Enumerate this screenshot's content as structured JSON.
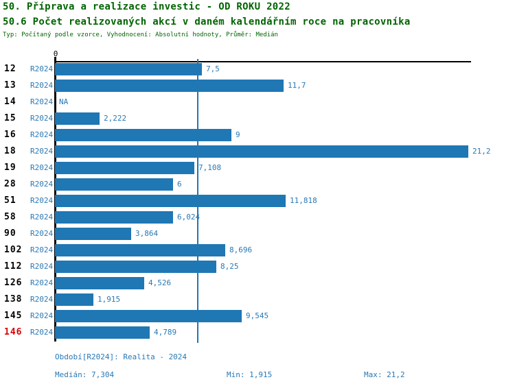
{
  "header": {
    "title_line1": "50. Příprava a realizace investic - OD ROKU 2022",
    "title_line2": "50.6 Počet realizovaných akcí v daném kalendářním roce na pracovníka",
    "subtitle": "Typ: Počítaný podle vzorce, Vyhodnocení: Absolutní hodnoty, Průměr: Medián"
  },
  "colors": {
    "title_green": "#006400",
    "bar_blue": "#1f77b4",
    "text_blue": "#2878b5",
    "highlight_red": "#d90000",
    "axis_black": "#000000"
  },
  "chart_data": {
    "type": "bar",
    "orientation": "horizontal",
    "axis_zero_label": "0",
    "series_label": "R2024",
    "categories": [
      "12",
      "13",
      "14",
      "15",
      "16",
      "18",
      "19",
      "28",
      "51",
      "58",
      "90",
      "102",
      "112",
      "126",
      "138",
      "145",
      "146"
    ],
    "values": [
      7.5,
      11.7,
      null,
      2.222,
      9,
      21.2,
      7.108,
      6,
      11.818,
      6.024,
      3.864,
      8.696,
      8.25,
      4.526,
      1.915,
      9.545,
      4.789
    ],
    "value_labels": [
      "7,5",
      "11,7",
      "NA",
      "2,222",
      "9",
      "21,2",
      "7,108",
      "6",
      "11,818",
      "6,024",
      "3,864",
      "8,696",
      "8,25",
      "4,526",
      "1,915",
      "9,545",
      "4,789"
    ],
    "highlighted_categories": [
      "146"
    ],
    "median_value": 7.304,
    "xlim": [
      0,
      21.2
    ],
    "grid": false,
    "legend": "none"
  },
  "footer": {
    "period": "Období[R2024]: Realita - 2024",
    "median": "Medián: 7,304",
    "min": "Min: 1,915",
    "max": "Max: 21,2"
  }
}
